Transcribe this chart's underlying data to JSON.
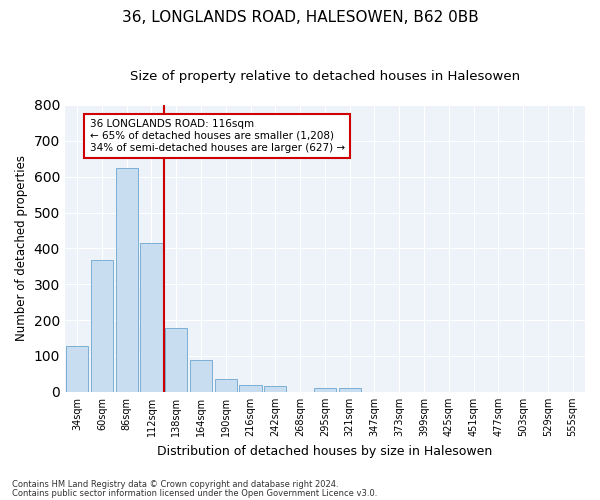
{
  "title": "36, LONGLANDS ROAD, HALESOWEN, B62 0BB",
  "subtitle": "Size of property relative to detached houses in Halesowen",
  "xlabel": "Distribution of detached houses by size in Halesowen",
  "ylabel": "Number of detached properties",
  "categories": [
    "34sqm",
    "60sqm",
    "86sqm",
    "112sqm",
    "138sqm",
    "164sqm",
    "190sqm",
    "216sqm",
    "242sqm",
    "268sqm",
    "295sqm",
    "321sqm",
    "347sqm",
    "373sqm",
    "399sqm",
    "425sqm",
    "451sqm",
    "477sqm",
    "503sqm",
    "529sqm",
    "555sqm"
  ],
  "values": [
    128,
    367,
    625,
    415,
    178,
    88,
    35,
    18,
    15,
    0,
    10,
    10,
    0,
    0,
    0,
    0,
    0,
    0,
    0,
    0,
    0
  ],
  "bar_color": "#c9ddf0",
  "bar_edge_color": "#7bafd4",
  "annotation_line1": "36 LONGLANDS ROAD: 116sqm",
  "annotation_line2": "← 65% of detached houses are smaller (1,208)",
  "annotation_line3": "34% of semi-detached houses are larger (627) →",
  "vline_color": "#cc0000",
  "annotation_box_color": "#ffffff",
  "annotation_box_edge": "#cc0000",
  "footer1": "Contains HM Land Registry data © Crown copyright and database right 2024.",
  "footer2": "Contains public sector information licensed under the Open Government Licence v3.0.",
  "ylim": [
    0,
    800
  ],
  "yticks": [
    0,
    100,
    200,
    300,
    400,
    500,
    600,
    700,
    800
  ],
  "background_color": "#eef2f9",
  "grid_color": "#ffffff",
  "title_fontsize": 11,
  "subtitle_fontsize": 9.5
}
